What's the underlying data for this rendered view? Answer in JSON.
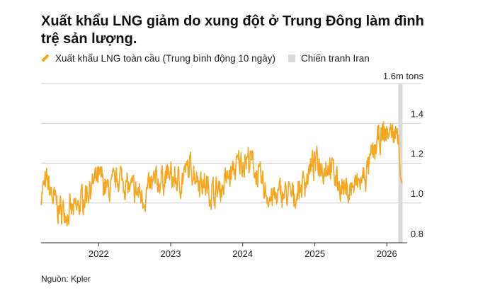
{
  "title": "Xuất khẩu LNG giảm do xung đột ở Trung Đông làm đình trệ sản lượng.",
  "legend": {
    "series_label": "Xuất khẩu LNG toàn cầu (Trung bình động 10 ngày)",
    "shade_label": "Chiến tranh Iran"
  },
  "source": "Nguồn: Kpler",
  "colors": {
    "series": "#f5a623",
    "shade": "#d9d9d9",
    "grid": "#cccccc",
    "axis": "#333333"
  },
  "chart_data": {
    "type": "line",
    "unit_label": "1.6m tons",
    "x_range": [
      "2021-03-15",
      "2026-03-20"
    ],
    "ylim": [
      0.8,
      1.6
    ],
    "y_ticks": [
      0.8,
      1.0,
      1.2,
      1.4
    ],
    "y_tick_labels": [
      "0.8",
      "1.0",
      "1.2",
      "1.4"
    ],
    "x_ticks": [
      "2022-01-01",
      "2023-01-01",
      "2024-01-01",
      "2025-01-01",
      "2026-01-01"
    ],
    "x_tick_labels": [
      "2022",
      "2023",
      "2024",
      "2025",
      "2026"
    ],
    "shaded_region": {
      "start": "2026-02-28",
      "end": "2026-03-31"
    },
    "series": [
      {
        "x": [
          "2021-03-15",
          "2021-04-15",
          "2021-05-15",
          "2021-06-15",
          "2021-07-15",
          "2021-08-15",
          "2021-09-15",
          "2021-10-15",
          "2021-11-15",
          "2021-12-15",
          "2022-01-15",
          "2022-02-15",
          "2022-03-15",
          "2022-04-15",
          "2022-05-15",
          "2022-06-15",
          "2022-07-15",
          "2022-08-15",
          "2022-09-15",
          "2022-10-15",
          "2022-11-15",
          "2022-12-15",
          "2023-01-15",
          "2023-02-15",
          "2023-03-15",
          "2023-04-15",
          "2023-05-15",
          "2023-06-15",
          "2023-07-15",
          "2023-08-15",
          "2023-09-15",
          "2023-10-15",
          "2023-11-15",
          "2023-12-15",
          "2024-01-15",
          "2024-02-15",
          "2024-03-15",
          "2024-04-15",
          "2024-05-15",
          "2024-06-15",
          "2024-07-15",
          "2024-08-15",
          "2024-09-15",
          "2024-10-15",
          "2024-11-15",
          "2024-12-15",
          "2025-01-15",
          "2025-02-15",
          "2025-03-15",
          "2025-04-15",
          "2025-05-15",
          "2025-06-15",
          "2025-07-15",
          "2025-08-15",
          "2025-09-15",
          "2025-10-15",
          "2025-11-15",
          "2025-12-15",
          "2026-01-15",
          "2026-02-15",
          "2026-02-28",
          "2026-03-10",
          "2026-03-20"
        ],
        "y": [
          1.05,
          1.1,
          1.02,
          0.97,
          0.96,
          0.95,
          0.97,
          1.03,
          1.08,
          1.1,
          1.12,
          1.06,
          1.08,
          1.14,
          1.1,
          1.06,
          1.05,
          1.03,
          1.07,
          1.1,
          1.12,
          1.14,
          1.12,
          1.1,
          1.15,
          1.18,
          1.14,
          1.1,
          1.07,
          1.05,
          1.08,
          1.12,
          1.16,
          1.2,
          1.22,
          1.21,
          1.14,
          1.08,
          1.03,
          1.02,
          1.05,
          1.04,
          1.03,
          1.07,
          1.12,
          1.18,
          1.21,
          1.18,
          1.2,
          1.13,
          1.08,
          1.06,
          1.08,
          1.1,
          1.14,
          1.22,
          1.3,
          1.34,
          1.36,
          1.34,
          1.38,
          1.14,
          1.09
        ]
      }
    ]
  }
}
